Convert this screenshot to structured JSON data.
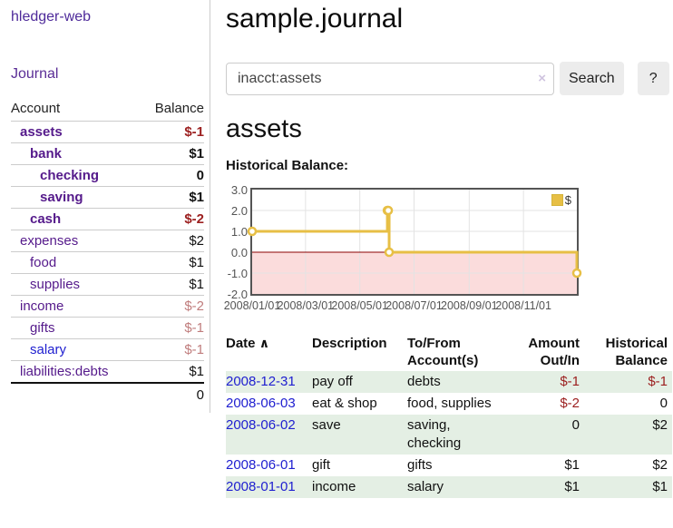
{
  "app": {
    "brand": "hledger-web"
  },
  "sidebar": {
    "journal_link": "Journal",
    "account_header": "Account",
    "balance_header": "Balance",
    "accounts": [
      {
        "name": "assets",
        "balance": "$-1"
      },
      {
        "name": "bank",
        "balance": "$1"
      },
      {
        "name": "checking",
        "balance": "0"
      },
      {
        "name": "saving",
        "balance": "$1"
      },
      {
        "name": "cash",
        "balance": "$-2"
      },
      {
        "name": "expenses",
        "balance": "$2"
      },
      {
        "name": "food",
        "balance": "$1"
      },
      {
        "name": "supplies",
        "balance": "$1"
      },
      {
        "name": "income",
        "balance": "$-2"
      },
      {
        "name": "gifts",
        "balance": "$-1"
      },
      {
        "name": "salary",
        "balance": "$-1"
      },
      {
        "name": "liabilities:debts",
        "balance": "$1"
      }
    ],
    "total": "0"
  },
  "main": {
    "title": "sample.journal",
    "search": {
      "value": "inacct:assets",
      "clear": "×",
      "button": "Search",
      "help": "?"
    },
    "account_title": "assets",
    "chart_title": "Historical Balance:"
  },
  "chart_data": {
    "type": "line",
    "step": true,
    "title": "Historical Balance",
    "series": [
      {
        "name": "$",
        "color": "#e7bf45",
        "x": [
          "2008-01-01",
          "2008-06-01",
          "2008-06-02",
          "2008-06-03",
          "2008-12-31"
        ],
        "y": [
          1,
          2,
          2,
          0,
          -1
        ]
      }
    ],
    "xrange": [
      "2008-01-01",
      "2008-12-31"
    ],
    "ylim": [
      -2,
      3
    ],
    "x_ticks": [
      "2008/01/01",
      "2008/03/01",
      "2008/05/01",
      "2008/07/01",
      "2008/09/01",
      "2008/11/01"
    ],
    "y_ticks": [
      "3.0",
      "2.0",
      "1.0",
      "0.0",
      "-1.0",
      "-2.0"
    ],
    "grid": true,
    "negative_region_color": "#fbdcdc",
    "zero_line_color": "#8b0000",
    "grid_color": "#e3e3e3",
    "legend": {
      "label": "$",
      "swatch_color": "#e7bf45",
      "position": "top-right"
    }
  },
  "register": {
    "headers": {
      "date": "Date",
      "sort_indicator": "∧",
      "description": "Description",
      "accounts_line1": "To/From",
      "accounts_line2": "Account(s)",
      "amount_line1": "Amount",
      "amount_line2": "Out/In",
      "balance_line1": "Historical",
      "balance_line2": "Balance"
    },
    "rows": [
      {
        "date": "2008-12-31",
        "description": "pay off",
        "accounts": "debts",
        "amount": "$-1",
        "balance": "$-1"
      },
      {
        "date": "2008-06-03",
        "description": "eat & shop",
        "accounts": "food, supplies",
        "amount": "$-2",
        "balance": "0"
      },
      {
        "date": "2008-06-02",
        "description": "save",
        "accounts": "saving,\nchecking",
        "amount": "0",
        "balance": "$2"
      },
      {
        "date": "2008-06-01",
        "description": "gift",
        "accounts": "gifts",
        "amount": "$1",
        "balance": "$2"
      },
      {
        "date": "2008-01-01",
        "description": "income",
        "accounts": "salary",
        "amount": "$1",
        "balance": "$1"
      }
    ]
  }
}
